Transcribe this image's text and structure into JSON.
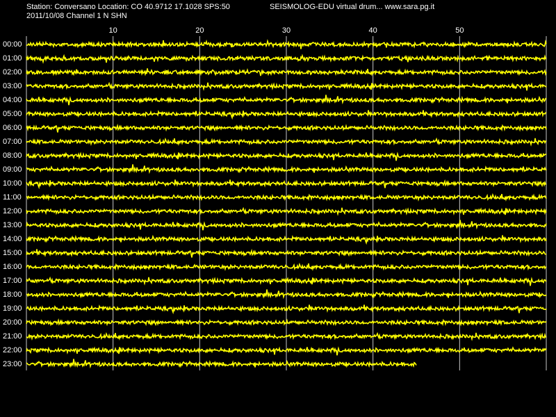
{
  "header": {
    "station_info": "Station: Conversano Location: CO 40.9712 17.1028 SPS:50",
    "app_info": "SEISMOLOG-EDU virtual drum... www.sara.pg.it",
    "date_channel": "2011/10/08  Channel 1 N SHN"
  },
  "colors": {
    "background": "#000000",
    "trace": "#ffff00",
    "gridline": "#c8c8c8",
    "text": "#ffffff"
  },
  "drum": {
    "minute_ticks": [
      {
        "minute": 10,
        "label": "10"
      },
      {
        "minute": 20,
        "label": "20"
      },
      {
        "minute": 30,
        "label": "30"
      },
      {
        "minute": 40,
        "label": "40"
      },
      {
        "minute": 50,
        "label": "50"
      }
    ],
    "minutes_per_line": 60,
    "hours": [
      {
        "label": "00:00",
        "end_minute": 60
      },
      {
        "label": "01:00",
        "end_minute": 60
      },
      {
        "label": "02:00",
        "end_minute": 60
      },
      {
        "label": "03:00",
        "end_minute": 60
      },
      {
        "label": "04:00",
        "end_minute": 60
      },
      {
        "label": "05:00",
        "end_minute": 60
      },
      {
        "label": "06:00",
        "end_minute": 60
      },
      {
        "label": "07:00",
        "end_minute": 60
      },
      {
        "label": "08:00",
        "end_minute": 60
      },
      {
        "label": "09:00",
        "end_minute": 60
      },
      {
        "label": "10:00",
        "end_minute": 60
      },
      {
        "label": "11:00",
        "end_minute": 60
      },
      {
        "label": "12:00",
        "end_minute": 60
      },
      {
        "label": "13:00",
        "end_minute": 60
      },
      {
        "label": "14:00",
        "end_minute": 60
      },
      {
        "label": "15:00",
        "end_minute": 60
      },
      {
        "label": "16:00",
        "end_minute": 60
      },
      {
        "label": "17:00",
        "end_minute": 60
      },
      {
        "label": "18:00",
        "end_minute": 60
      },
      {
        "label": "19:00",
        "end_minute": 60
      },
      {
        "label": "20:00",
        "end_minute": 60
      },
      {
        "label": "21:00",
        "end_minute": 60
      },
      {
        "label": "22:00",
        "end_minute": 60
      },
      {
        "label": "23:00",
        "end_minute": 45
      }
    ]
  }
}
